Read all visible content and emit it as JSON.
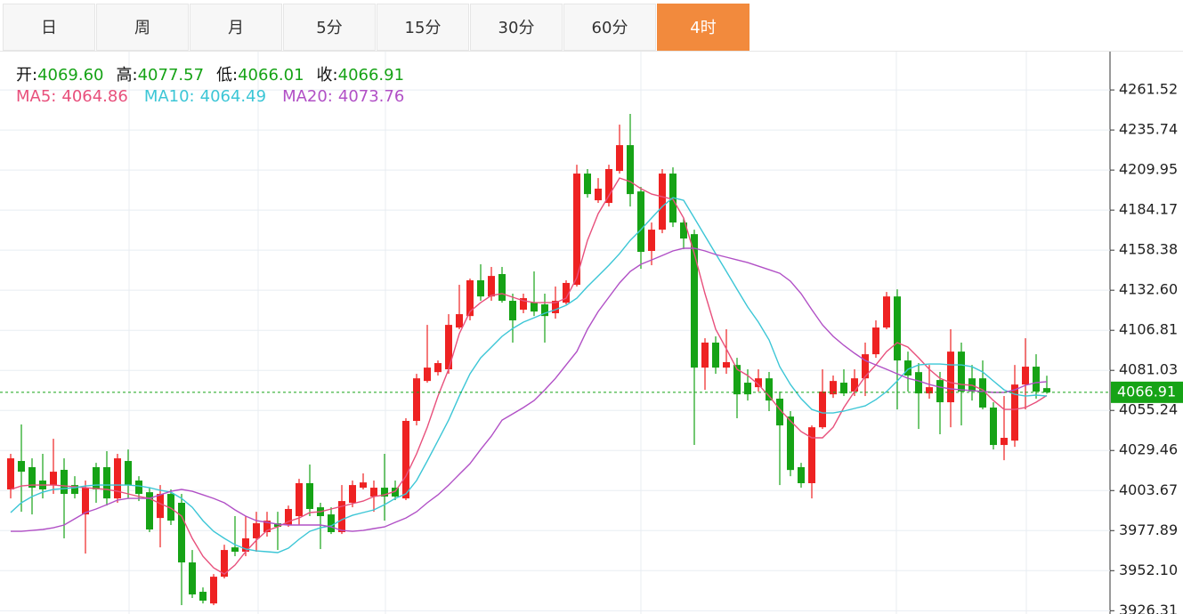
{
  "tabs": {
    "items": [
      "日",
      "周",
      "月",
      "5分",
      "15分",
      "30分",
      "60分",
      "4时"
    ],
    "active": "4时"
  },
  "chart_data": {
    "type": "candlestick",
    "info": [
      {
        "label": "开:",
        "value": "4069.60"
      },
      {
        "label": "高:",
        "value": "4077.57"
      },
      {
        "label": "低:",
        "value": "4066.01"
      },
      {
        "label": "收:",
        "value": "4066.91"
      }
    ],
    "up_color": "#ee2222",
    "down_color": "#16a316",
    "ylim": [
      3924.2,
      4286.2
    ],
    "yticks": [
      4261.52,
      4235.74,
      4209.95,
      4184.17,
      4158.38,
      {
        "value": 4132.6,
        "label": "4132.60"
      },
      4106.81,
      4081.03,
      4055.24,
      4029.46,
      4003.67,
      3977.89,
      {
        "value": 3952.1,
        "label": "3952.10"
      },
      3926.31
    ],
    "grid": true,
    "last_price": 4066.91,
    "ohlc": [
      [
        4004.4,
        4027.3,
        3998.6,
        4024.4
      ],
      [
        4022.7,
        4046.2,
        3990.0,
        4015.8
      ],
      [
        4018.7,
        4024.4,
        3988.3,
        4005.5
      ],
      [
        4010.1,
        4027.3,
        3998.6,
        4004.4
      ],
      [
        4007.2,
        4037.0,
        4001.5,
        4015.8
      ],
      [
        4017.0,
        4024.4,
        3972.9,
        4001.5
      ],
      [
        4007.2,
        4012.9,
        3998.6,
        4001.5
      ],
      [
        3988.3,
        4010.1,
        3963.1,
        4005.5
      ],
      [
        4018.7,
        4021.5,
        3995.8,
        4004.4
      ],
      [
        4018.7,
        4029.0,
        3994.0,
        3998.6
      ],
      [
        3998.6,
        4027.3,
        3995.8,
        4024.4
      ],
      [
        4022.7,
        4030.1,
        3998.6,
        4007.2
      ],
      [
        4010.1,
        4012.9,
        3996.9,
        4001.5
      ],
      [
        4002.6,
        4005.5,
        3976.9,
        3978.6
      ],
      [
        3986.0,
        4007.2,
        3967.1,
        4001.5
      ],
      [
        4001.5,
        4004.4,
        3981.5,
        3984.3
      ],
      [
        3995.8,
        4001.5,
        3929.9,
        3957.4
      ],
      [
        3957.4,
        3965.4,
        3934.5,
        3936.8
      ],
      [
        3938.5,
        3941.3,
        3931.0,
        3932.8
      ],
      [
        3931.0,
        3949.9,
        3929.9,
        3948.2
      ],
      [
        3948.2,
        3968.8,
        3947.1,
        3965.4
      ],
      [
        3967.1,
        3987.2,
        3961.4,
        3964.3
      ],
      [
        3964.3,
        3987.2,
        3961.4,
        3972.9
      ],
      [
        3972.9,
        3990.0,
        3964.3,
        3982.6
      ],
      [
        3976.9,
        3990.0,
        3974.0,
        3984.3
      ],
      [
        3982.6,
        3990.0,
        3965.4,
        3980.3
      ],
      [
        3981.5,
        3994.0,
        3980.3,
        3991.8
      ],
      [
        3987.2,
        4011.2,
        3981.5,
        4008.4
      ],
      [
        4008.4,
        4020.4,
        3987.2,
        3991.8
      ],
      [
        3992.9,
        3995.8,
        3966.0,
        3987.2
      ],
      [
        3988.3,
        3992.9,
        3975.7,
        3976.9
      ],
      [
        3976.9,
        4007.2,
        3975.7,
        3996.9
      ],
      [
        3995.8,
        4010.1,
        3992.9,
        4007.2
      ],
      [
        4005.5,
        4014.7,
        4004.4,
        4008.9
      ],
      [
        3999.8,
        4010.1,
        3990.0,
        4005.5
      ],
      [
        4005.5,
        4027.3,
        3984.3,
        3999.8
      ],
      [
        4005.5,
        4010.1,
        3997.5,
        3999.8
      ],
      [
        3998.6,
        4050.2,
        3997.5,
        4048.5
      ],
      [
        4048.5,
        4078.8,
        4045.6,
        4075.9
      ],
      [
        4074.2,
        4110.3,
        4073.1,
        4082.8
      ],
      [
        4079.9,
        4087.4,
        4077.7,
        4085.7
      ],
      [
        4081.7,
        4117.2,
        4078.8,
        4110.3
      ],
      [
        4108.6,
        4136.1,
        4107.5,
        4117.2
      ],
      [
        4116.0,
        4140.1,
        4113.2,
        4139.0
      ],
      [
        4139.0,
        4149.3,
        4125.8,
        4128.6
      ],
      [
        4128.6,
        4147.6,
        4125.8,
        4141.8
      ],
      [
        4143.0,
        4147.6,
        4124.6,
        4125.8
      ],
      [
        4125.8,
        4130.4,
        4098.9,
        4113.2
      ],
      [
        4120.1,
        4130.4,
        4117.8,
        4127.5
      ],
      [
        4124.6,
        4144.7,
        4116.0,
        4118.9
      ],
      [
        4123.5,
        4130.4,
        4098.9,
        4116.0
      ],
      [
        4117.8,
        4135.0,
        4114.3,
        4125.8
      ],
      [
        4124.6,
        4139.0,
        4123.5,
        4137.3
      ],
      [
        4136.1,
        4213.4,
        4135.0,
        4207.7
      ],
      [
        4207.7,
        4210.6,
        4192.2,
        4194.5
      ],
      [
        4190.5,
        4204.8,
        4188.8,
        4198.0
      ],
      [
        4188.8,
        4213.4,
        4186.5,
        4210.6
      ],
      [
        4209.4,
        4239.2,
        4207.7,
        4226.0
      ],
      [
        4226.0,
        4246.1,
        4186.5,
        4194.5
      ],
      [
        4196.2,
        4199.1,
        4146.4,
        4157.3
      ],
      [
        4157.9,
        4176.2,
        4148.7,
        4171.6
      ],
      [
        4171.6,
        4210.6,
        4169.3,
        4207.7
      ],
      [
        4207.7,
        4211.7,
        4173.3,
        4176.2
      ],
      [
        4176.2,
        4179.1,
        4159.0,
        4165.9
      ],
      [
        4168.7,
        4171.6,
        4033.0,
        4082.8
      ],
      [
        4082.8,
        4101.7,
        4068.5,
        4098.9
      ],
      [
        4098.9,
        4102.9,
        4078.8,
        4082.8
      ],
      [
        4082.8,
        4107.5,
        4078.8,
        4086.3
      ],
      [
        4084.5,
        4089.1,
        4050.2,
        4065.6
      ],
      [
        4073.1,
        4081.7,
        4061.6,
        4065.6
      ],
      [
        4070.2,
        4081.7,
        4067.4,
        4075.9
      ],
      [
        4075.9,
        4080.0,
        4054.8,
        4061.6
      ],
      [
        4062.8,
        4067.4,
        4007.2,
        4045.6
      ],
      [
        4051.3,
        4054.8,
        4012.9,
        4016.9
      ],
      [
        4018.7,
        4021.5,
        4005.5,
        4008.4
      ],
      [
        4008.4,
        4045.6,
        3998.6,
        4044.4
      ],
      [
        4044.4,
        4081.7,
        4043.3,
        4067.4
      ],
      [
        4065.6,
        4077.7,
        4063.3,
        4074.2
      ],
      [
        4073.1,
        4081.7,
        4064.5,
        4066.2
      ],
      [
        4067.4,
        4081.7,
        4064.5,
        4075.9
      ],
      [
        4075.9,
        4098.9,
        4064.5,
        4091.4
      ],
      [
        4091.4,
        4113.2,
        4089.1,
        4108.6
      ],
      [
        4108.6,
        4131.5,
        4107.5,
        4128.6
      ],
      [
        4128.6,
        4133.2,
        4055.9,
        4087.4
      ],
      [
        4087.4,
        4093.1,
        4067.4,
        4077.7
      ],
      [
        4079.9,
        4085.7,
        4043.3,
        4066.2
      ],
      [
        4066.2,
        4084.5,
        4062.8,
        4070.2
      ],
      [
        4074.8,
        4080.0,
        4039.9,
        4060.5
      ],
      [
        4060.5,
        4107.5,
        4044.4,
        4093.1
      ],
      [
        4093.1,
        4098.9,
        4045.6,
        4067.4
      ],
      [
        4075.9,
        4084.5,
        4061.6,
        4067.4
      ],
      [
        4075.9,
        4087.4,
        4055.9,
        4057.1
      ],
      [
        4057.1,
        4060.5,
        4030.1,
        4033.0
      ],
      [
        4033.0,
        4064.5,
        4023.2,
        4037.6
      ],
      [
        4035.8,
        4084.5,
        4031.8,
        4071.9
      ],
      [
        4071.9,
        4101.7,
        4055.9,
        4083.4
      ],
      [
        4083.4,
        4091.4,
        4062.8,
        4067.4
      ],
      [
        4069.6,
        4077.57,
        4066.01,
        4066.91
      ]
    ],
    "series": [
      {
        "name": "MA5:",
        "color": "#e8507c",
        "value_label": "4064.86",
        "values": [
          4004.4,
          4006.6,
          4007.2,
          4007.2,
          4007.2,
          4006.6,
          4006.1,
          4005.5,
          4004.9,
          4004.4,
          4003.2,
          4001.5,
          3999.8,
          3998.6,
          3995.2,
          3992.3,
          3987.2,
          3972.9,
          3961.4,
          3953.9,
          3949.9,
          3955.7,
          3964.3,
          3971.7,
          3978.0,
          3980.3,
          3983.7,
          3986.0,
          3989.5,
          3990.0,
          3991.8,
          3993.5,
          3995.2,
          3996.9,
          3999.8,
          4000.9,
          4003.2,
          4012.9,
          4027.3,
          4044.4,
          4064.5,
          4081.7,
          4104.6,
          4118.9,
          4124.6,
          4129.2,
          4130.4,
          4128.1,
          4125.8,
          4124.6,
          4124.6,
          4124.6,
          4127.5,
          4140.7,
          4164.7,
          4181.9,
          4193.4,
          4204.8,
          4202.5,
          4198.0,
          4194.5,
          4192.8,
          4191.1,
          4179.1,
          4156.1,
          4130.4,
          4107.5,
          4094.9,
          4081.7,
          4077.7,
          4071.9,
          4064.5,
          4055.9,
          4048.5,
          4041.6,
          4037.6,
          4037.6,
          4044.4,
          4057.1,
          4067.4,
          4077.1,
          4084.5,
          4093.1,
          4098.9,
          4096.0,
          4089.1,
          4081.7,
          4075.9,
          4073.1,
          4071.9,
          4071.4,
          4068.5,
          4061.6,
          4055.9,
          4055.9,
          4057.1,
          4060.5,
          4064.86
        ]
      },
      {
        "name": "MA10:",
        "color": "#3cc6d6",
        "value_label": "4064.49",
        "values": [
          3989.5,
          3995.8,
          3999.8,
          4002.6,
          4004.4,
          4004.9,
          4005.5,
          4006.6,
          4007.2,
          4007.2,
          4007.2,
          4007.2,
          4006.6,
          4005.5,
          4003.8,
          4002.6,
          3998.6,
          3992.9,
          3984.3,
          3977.4,
          3972.9,
          3968.8,
          3966.0,
          3964.8,
          3964.3,
          3963.7,
          3966.6,
          3972.3,
          3977.4,
          3979.7,
          3980.9,
          3984.9,
          3987.7,
          3989.5,
          3991.2,
          3994.6,
          3998.6,
          4001.5,
          4010.1,
          4022.7,
          4035.8,
          4049.0,
          4064.5,
          4078.8,
          4089.1,
          4096.0,
          4102.9,
          4108.0,
          4112.1,
          4114.9,
          4117.8,
          4120.1,
          4122.9,
          4127.5,
          4135.0,
          4141.8,
          4148.7,
          4156.1,
          4164.7,
          4171.6,
          4179.1,
          4186.5,
          4192.2,
          4190.5,
          4179.1,
          4167.6,
          4156.1,
          4144.7,
          4133.2,
          4121.8,
          4112.1,
          4100.6,
          4083.4,
          4071.9,
          4062.8,
          4055.9,
          4053.6,
          4053.6,
          4054.8,
          4056.5,
          4058.2,
          4062.2,
          4067.4,
          4074.2,
          4081.7,
          4084.5,
          4085.1,
          4085.1,
          4084.5,
          4084.5,
          4083.4,
          4080.0,
          4074.2,
          4068.5,
          4065.6,
          4064.5,
          4065.1,
          4064.49
        ]
      },
      {
        "name": "MA20:",
        "color": "#b150c6",
        "value_label": "4073.76",
        "values": [
          3977.4,
          3977.4,
          3978.0,
          3978.6,
          3979.7,
          3981.5,
          3985.5,
          3989.5,
          3991.8,
          3994.6,
          3997.5,
          3998.6,
          3998.6,
          3998.6,
          4000.9,
          4003.2,
          4004.4,
          4003.2,
          4000.9,
          3998.6,
          3995.8,
          3991.2,
          3987.2,
          3984.3,
          3983.2,
          3982.0,
          3981.5,
          3981.5,
          3981.5,
          3981.5,
          3980.3,
          3978.0,
          3977.4,
          3978.0,
          3979.2,
          3980.3,
          3983.2,
          3986.0,
          3990.0,
          3995.8,
          4000.9,
          4007.2,
          4014.1,
          4021.0,
          4030.1,
          4038.7,
          4049.0,
          4053.0,
          4057.1,
          4061.6,
          4068.5,
          4075.9,
          4084.5,
          4093.1,
          4107.5,
          4118.9,
          4128.1,
          4137.3,
          4144.7,
          4149.3,
          4152.1,
          4155.0,
          4157.9,
          4159.6,
          4159.6,
          4157.9,
          4155.6,
          4153.9,
          4152.1,
          4150.4,
          4148.1,
          4145.8,
          4143.5,
          4138.4,
          4130.4,
          4120.1,
          4110.3,
          4102.9,
          4097.1,
          4092.0,
          4087.4,
          4084.5,
          4081.7,
          4078.8,
          4075.9,
          4074.2,
          4071.9,
          4070.2,
          4069.1,
          4068.5,
          4068.0,
          4067.4,
          4066.8,
          4066.8,
          4068.5,
          4071.4,
          4073.1,
          4073.76
        ]
      }
    ]
  }
}
